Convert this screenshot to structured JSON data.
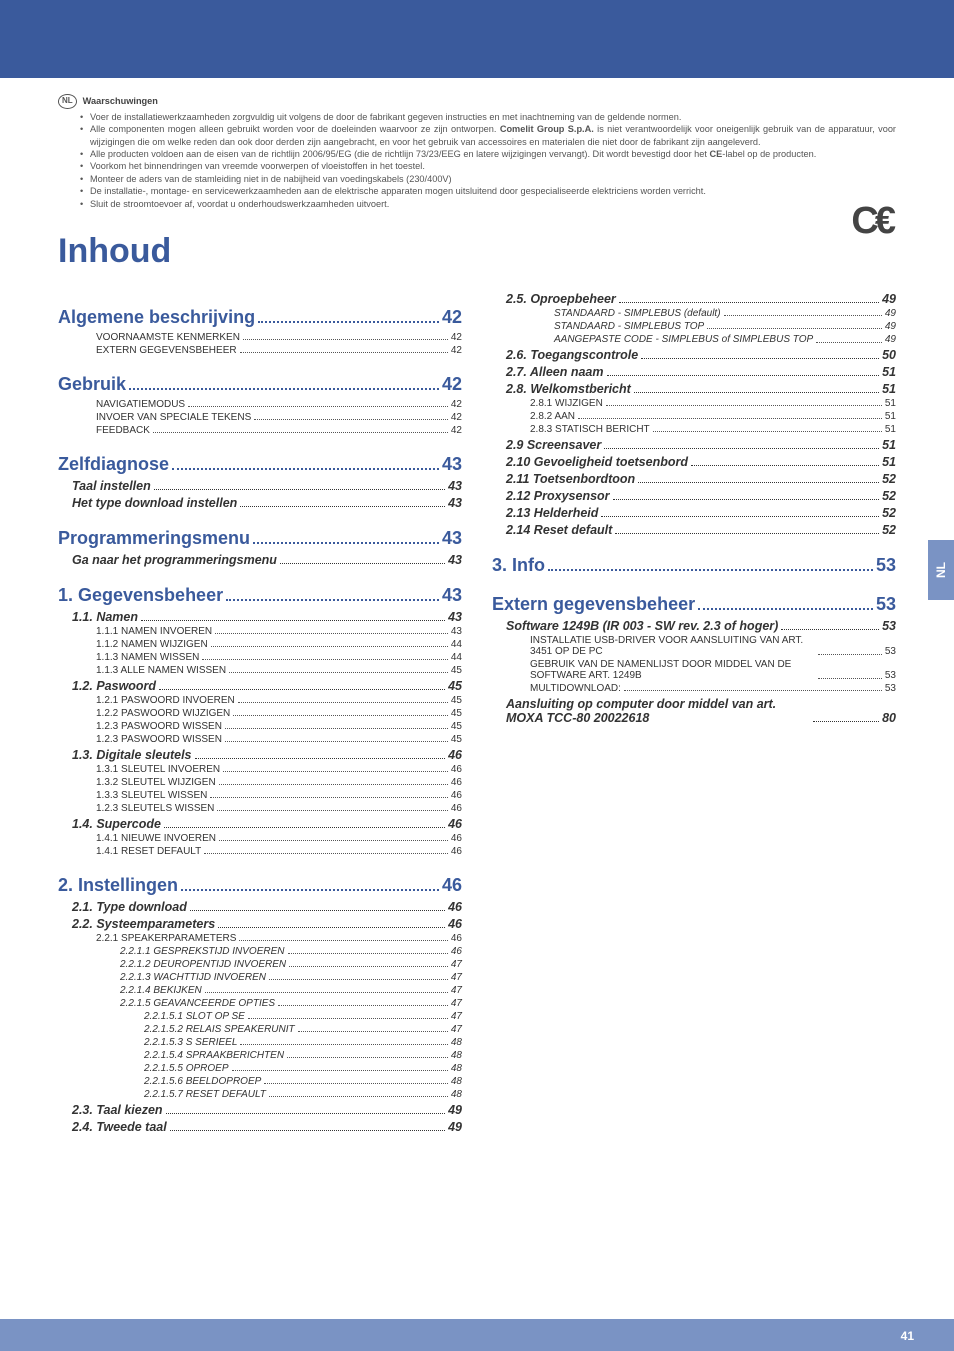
{
  "header": {
    "lang_badge": "NL",
    "title": "Waarschuwingen",
    "bullets": [
      "Voer de installatiewerkzaamheden zorgvuldig uit volgens de door de fabrikant gegeven instructies en met inachtneming van de geldende normen.",
      "Alle componenten mogen alleen gebruikt worden voor de doeleinden waarvoor ze zijn ontworpen. <b>Comelit Group S.p.A.</b> is niet verantwoordelijk voor oneigenlijk gebruik van de apparatuur, voor wijzigingen die om welke reden dan ook door derden zijn aangebracht, en voor het gebruik van accessoires en materialen die niet door de fabrikant zijn aangeleverd.",
      "Alle producten voldoen aan de eisen van de richtlijn 2006/95/EG (die de richtlijn 73/23/EEG en latere wijzigingen vervangt). Dit wordt bevestigd door het <b>CE</b>-label op de producten.",
      "Voorkom het binnendringen van vreemde voorwerpen of vloeistoffen in het toestel.",
      "Monteer de aders van de stamleiding niet in de nabijheid van voedingskabels (230/400V)",
      "De installatie-, montage- en servicewerkzaamheden aan de elektrische apparaten mogen uitsluitend door gespecialiseerde elektriciens worden verricht.",
      "Sluit de stroomtoevoer af, voordat u onderhoudswerkzaamheden uitvoert."
    ]
  },
  "title": "Inhoud",
  "side_tab": "NL",
  "page_number": "41",
  "toc_left": [
    {
      "level": 0,
      "label": "Algemene beschrijving",
      "page": "42"
    },
    {
      "level": 2,
      "label": "VOORNAAMSTE KENMERKEN",
      "page": "42"
    },
    {
      "level": 2,
      "label": "EXTERN GEGEVENSBEHEER",
      "page": "42"
    },
    {
      "level": 0,
      "label": "Gebruik",
      "page": "42"
    },
    {
      "level": 2,
      "label": "NAVIGATIEMODUS",
      "page": "42"
    },
    {
      "level": 2,
      "label": "INVOER VAN SPECIALE TEKENS",
      "page": "42"
    },
    {
      "level": 2,
      "label": "FEEDBACK",
      "page": "42"
    },
    {
      "level": 0,
      "label": "Zelfdiagnose",
      "page": "43"
    },
    {
      "level": 1,
      "label": "Taal instellen",
      "page": "43"
    },
    {
      "level": 1,
      "label": "Het type download instellen",
      "page": "43"
    },
    {
      "level": 0,
      "label": "Programmeringsmenu",
      "page": "43"
    },
    {
      "level": 1,
      "label": "Ga naar het programmeringsmenu",
      "page": "43"
    },
    {
      "level": 0,
      "label": "1. Gegevensbeheer",
      "page": "43"
    },
    {
      "level": 1,
      "label": "1.1. Namen",
      "page": "43"
    },
    {
      "level": 2,
      "label": "1.1.1 NAMEN INVOEREN",
      "page": "43"
    },
    {
      "level": 2,
      "label": "1.1.2 NAMEN WIJZIGEN",
      "page": "44"
    },
    {
      "level": 2,
      "label": "1.1.3 NAMEN WISSEN",
      "page": "44"
    },
    {
      "level": 2,
      "label": "1.1.3 ALLE NAMEN WISSEN",
      "page": "45"
    },
    {
      "level": 1,
      "label": "1.2. Paswoord",
      "page": "45"
    },
    {
      "level": 2,
      "label": "1.2.1 PASWOORD INVOEREN",
      "page": "45"
    },
    {
      "level": 2,
      "label": "1.2.2 PASWOORD WIJZIGEN",
      "page": "45"
    },
    {
      "level": 2,
      "label": "1.2.3 PASWOORD WISSEN",
      "page": "45"
    },
    {
      "level": 2,
      "label": "1.2.3 PASWOORD WISSEN",
      "page": "45"
    },
    {
      "level": 1,
      "label": "1.3. Digitale sleutels",
      "page": "46"
    },
    {
      "level": 2,
      "label": "1.3.1 SLEUTEL INVOEREN",
      "page": "46"
    },
    {
      "level": 2,
      "label": "1.3.2 SLEUTEL WIJZIGEN",
      "page": "46"
    },
    {
      "level": 2,
      "label": "1.3.3 SLEUTEL WISSEN",
      "page": "46"
    },
    {
      "level": 2,
      "label": "1.2.3 SLEUTELS WISSEN",
      "page": "46"
    },
    {
      "level": 1,
      "label": "1.4. Supercode",
      "page": "46"
    },
    {
      "level": 2,
      "label": "1.4.1 NIEUWE INVOEREN",
      "page": "46"
    },
    {
      "level": 2,
      "label": "1.4.1 RESET DEFAULT",
      "page": "46"
    },
    {
      "level": 0,
      "label": "2. Instellingen",
      "page": "46"
    },
    {
      "level": 1,
      "label": "2.1. Type download",
      "page": "46"
    },
    {
      "level": 1,
      "label": "2.2. Systeemparameters",
      "page": "46"
    },
    {
      "level": 2,
      "label": "2.2.1 SPEAKERPARAMETERS",
      "page": "46"
    },
    {
      "level": 3,
      "label": "2.2.1.1 GESPREKSTIJD INVOEREN",
      "page": "46"
    },
    {
      "level": 3,
      "label": "2.2.1.2 DEUROPENTIJD INVOEREN",
      "page": "47"
    },
    {
      "level": 3,
      "label": "2.2.1.3 WACHTTIJD INVOEREN",
      "page": "47"
    },
    {
      "level": 3,
      "label": "2.2.1.4 BEKIJKEN",
      "page": "47"
    },
    {
      "level": 3,
      "label": "2.2.1.5 GEAVANCEERDE OPTIES",
      "page": "47"
    },
    {
      "level": 4,
      "label": "2.2.1.5.1 SLOT OP SE",
      "page": "47"
    },
    {
      "level": 4,
      "label": "2.2.1.5.2 RELAIS SPEAKERUNIT",
      "page": "47"
    },
    {
      "level": 4,
      "label": "2.2.1.5.3 S SERIEEL",
      "page": "48"
    },
    {
      "level": 4,
      "label": "2.2.1.5.4 SPRAAKBERICHTEN",
      "page": "48"
    },
    {
      "level": 4,
      "label": "2.2.1.5.5 OPROEP",
      "page": "48"
    },
    {
      "level": 4,
      "label": "2.2.1.5.6 BEELDOPROEP",
      "page": "48"
    },
    {
      "level": 4,
      "label": "2.2.1.5.7 RESET DEFAULT",
      "page": "48"
    },
    {
      "level": 1,
      "label": "2.3. Taal kiezen",
      "page": "49"
    },
    {
      "level": 1,
      "label": "2.4. Tweede taal",
      "page": "49"
    }
  ],
  "toc_right": [
    {
      "level": 1,
      "label": "2.5. Oproepbeheer",
      "page": "49"
    },
    {
      "level": 3,
      "label": "STANDAARD - SIMPLEBUS (default)",
      "page": "49"
    },
    {
      "level": 3,
      "label": "STANDAARD - SIMPLEBUS TOP",
      "page": "49"
    },
    {
      "level": 3,
      "label": "AANGEPASTE CODE - SIMPLEBUS of SIMPLEBUS TOP",
      "page": "49",
      "wrap": true
    },
    {
      "level": 1,
      "label": "2.6. Toegangscontrole",
      "page": "50"
    },
    {
      "level": 1,
      "label": "2.7. Alleen naam",
      "page": "51"
    },
    {
      "level": 1,
      "label": "2.8. Welkomstbericht",
      "page": "51"
    },
    {
      "level": 2,
      "label": "2.8.1 WIJZIGEN",
      "page": "51"
    },
    {
      "level": 2,
      "label": "2.8.2 AAN",
      "page": "51"
    },
    {
      "level": 2,
      "label": "2.8.3 STATISCH BERICHT",
      "page": "51"
    },
    {
      "level": 1,
      "label": "2.9 Screensaver",
      "page": "51"
    },
    {
      "level": 1,
      "label": "2.10 Gevoeligheid toetsenbord",
      "page": "51"
    },
    {
      "level": 1,
      "label": "2.11 Toetsenbordtoon",
      "page": "52"
    },
    {
      "level": 1,
      "label": "2.12 Proxysensor",
      "page": "52"
    },
    {
      "level": 1,
      "label": "2.13 Helderheid",
      "page": "52"
    },
    {
      "level": 1,
      "label": "2.14 Reset default",
      "page": "52"
    },
    {
      "level": 0,
      "label": "3. Info",
      "page": "53"
    },
    {
      "level": 0,
      "label": "Extern gegevensbeheer",
      "page": "53"
    },
    {
      "level": 1,
      "label": "Software 1249B (IR 003 - SW rev. 2.3 of hoger)",
      "page": "53"
    },
    {
      "level": 2,
      "label": "INSTALLATIE USB-DRIVER VOOR AANSLUITING VAN ART. 3451 OP DE PC",
      "page": "53",
      "wrap": true
    },
    {
      "level": 2,
      "label": "GEBRUIK VAN DE NAMENLIJST DOOR MIDDEL VAN DE SOFTWARE ART. 1249B",
      "page": "53",
      "wrap": true
    },
    {
      "level": 2,
      "label": "MULTIDOWNLOAD:",
      "page": "53"
    },
    {
      "level": 1,
      "label": "Aansluiting op computer door middel van art. MOXA TCC-80 20022618",
      "page": "80",
      "wrap": true
    }
  ]
}
